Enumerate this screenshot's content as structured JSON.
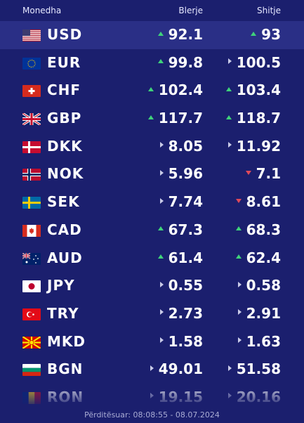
{
  "header": {
    "currency": "Monedha",
    "buy": "Blerje",
    "sell": "Shitje"
  },
  "rows": [
    {
      "code": "USD",
      "buy": "92.1",
      "buy_trend": "up",
      "sell": "93",
      "sell_trend": "up",
      "flag_icon": "us-flag-icon"
    },
    {
      "code": "EUR",
      "buy": "99.8",
      "buy_trend": "up",
      "sell": "100.5",
      "sell_trend": "neutral",
      "flag_icon": "eu-flag-icon"
    },
    {
      "code": "CHF",
      "buy": "102.4",
      "buy_trend": "up",
      "sell": "103.4",
      "sell_trend": "up",
      "flag_icon": "ch-flag-icon"
    },
    {
      "code": "GBP",
      "buy": "117.7",
      "buy_trend": "up",
      "sell": "118.7",
      "sell_trend": "up",
      "flag_icon": "gb-flag-icon"
    },
    {
      "code": "DKK",
      "buy": "8.05",
      "buy_trend": "neutral",
      "sell": "11.92",
      "sell_trend": "neutral",
      "flag_icon": "dk-flag-icon"
    },
    {
      "code": "NOK",
      "buy": "5.96",
      "buy_trend": "neutral",
      "sell": "7.1",
      "sell_trend": "down",
      "flag_icon": "no-flag-icon"
    },
    {
      "code": "SEK",
      "buy": "7.74",
      "buy_trend": "neutral",
      "sell": "8.61",
      "sell_trend": "down",
      "flag_icon": "se-flag-icon"
    },
    {
      "code": "CAD",
      "buy": "67.3",
      "buy_trend": "up",
      "sell": "68.3",
      "sell_trend": "up",
      "flag_icon": "ca-flag-icon"
    },
    {
      "code": "AUD",
      "buy": "61.4",
      "buy_trend": "up",
      "sell": "62.4",
      "sell_trend": "up",
      "flag_icon": "au-flag-icon"
    },
    {
      "code": "JPY",
      "buy": "0.55",
      "buy_trend": "neutral",
      "sell": "0.58",
      "sell_trend": "neutral",
      "flag_icon": "jp-flag-icon"
    },
    {
      "code": "TRY",
      "buy": "2.73",
      "buy_trend": "neutral",
      "sell": "2.91",
      "sell_trend": "neutral",
      "flag_icon": "tr-flag-icon"
    },
    {
      "code": "MKD",
      "buy": "1.58",
      "buy_trend": "neutral",
      "sell": "1.63",
      "sell_trend": "neutral",
      "flag_icon": "mk-flag-icon"
    },
    {
      "code": "BGN",
      "buy": "49.01",
      "buy_trend": "neutral",
      "sell": "51.58",
      "sell_trend": "neutral",
      "flag_icon": "bg-flag-icon"
    },
    {
      "code": "RON",
      "buy": "19.15",
      "buy_trend": "neutral",
      "sell": "20.16",
      "sell_trend": "neutral",
      "flag_icon": "ro-flag-icon"
    }
  ],
  "footer": {
    "updated": "Përditësuar: 08:08:55 - 08.07.2024"
  },
  "colors": {
    "background": "#1b1f6e",
    "highlight_row": "#2a2f86",
    "up": "#3fd27a",
    "down": "#e04a5a",
    "neutral": "#c9cbe8"
  }
}
